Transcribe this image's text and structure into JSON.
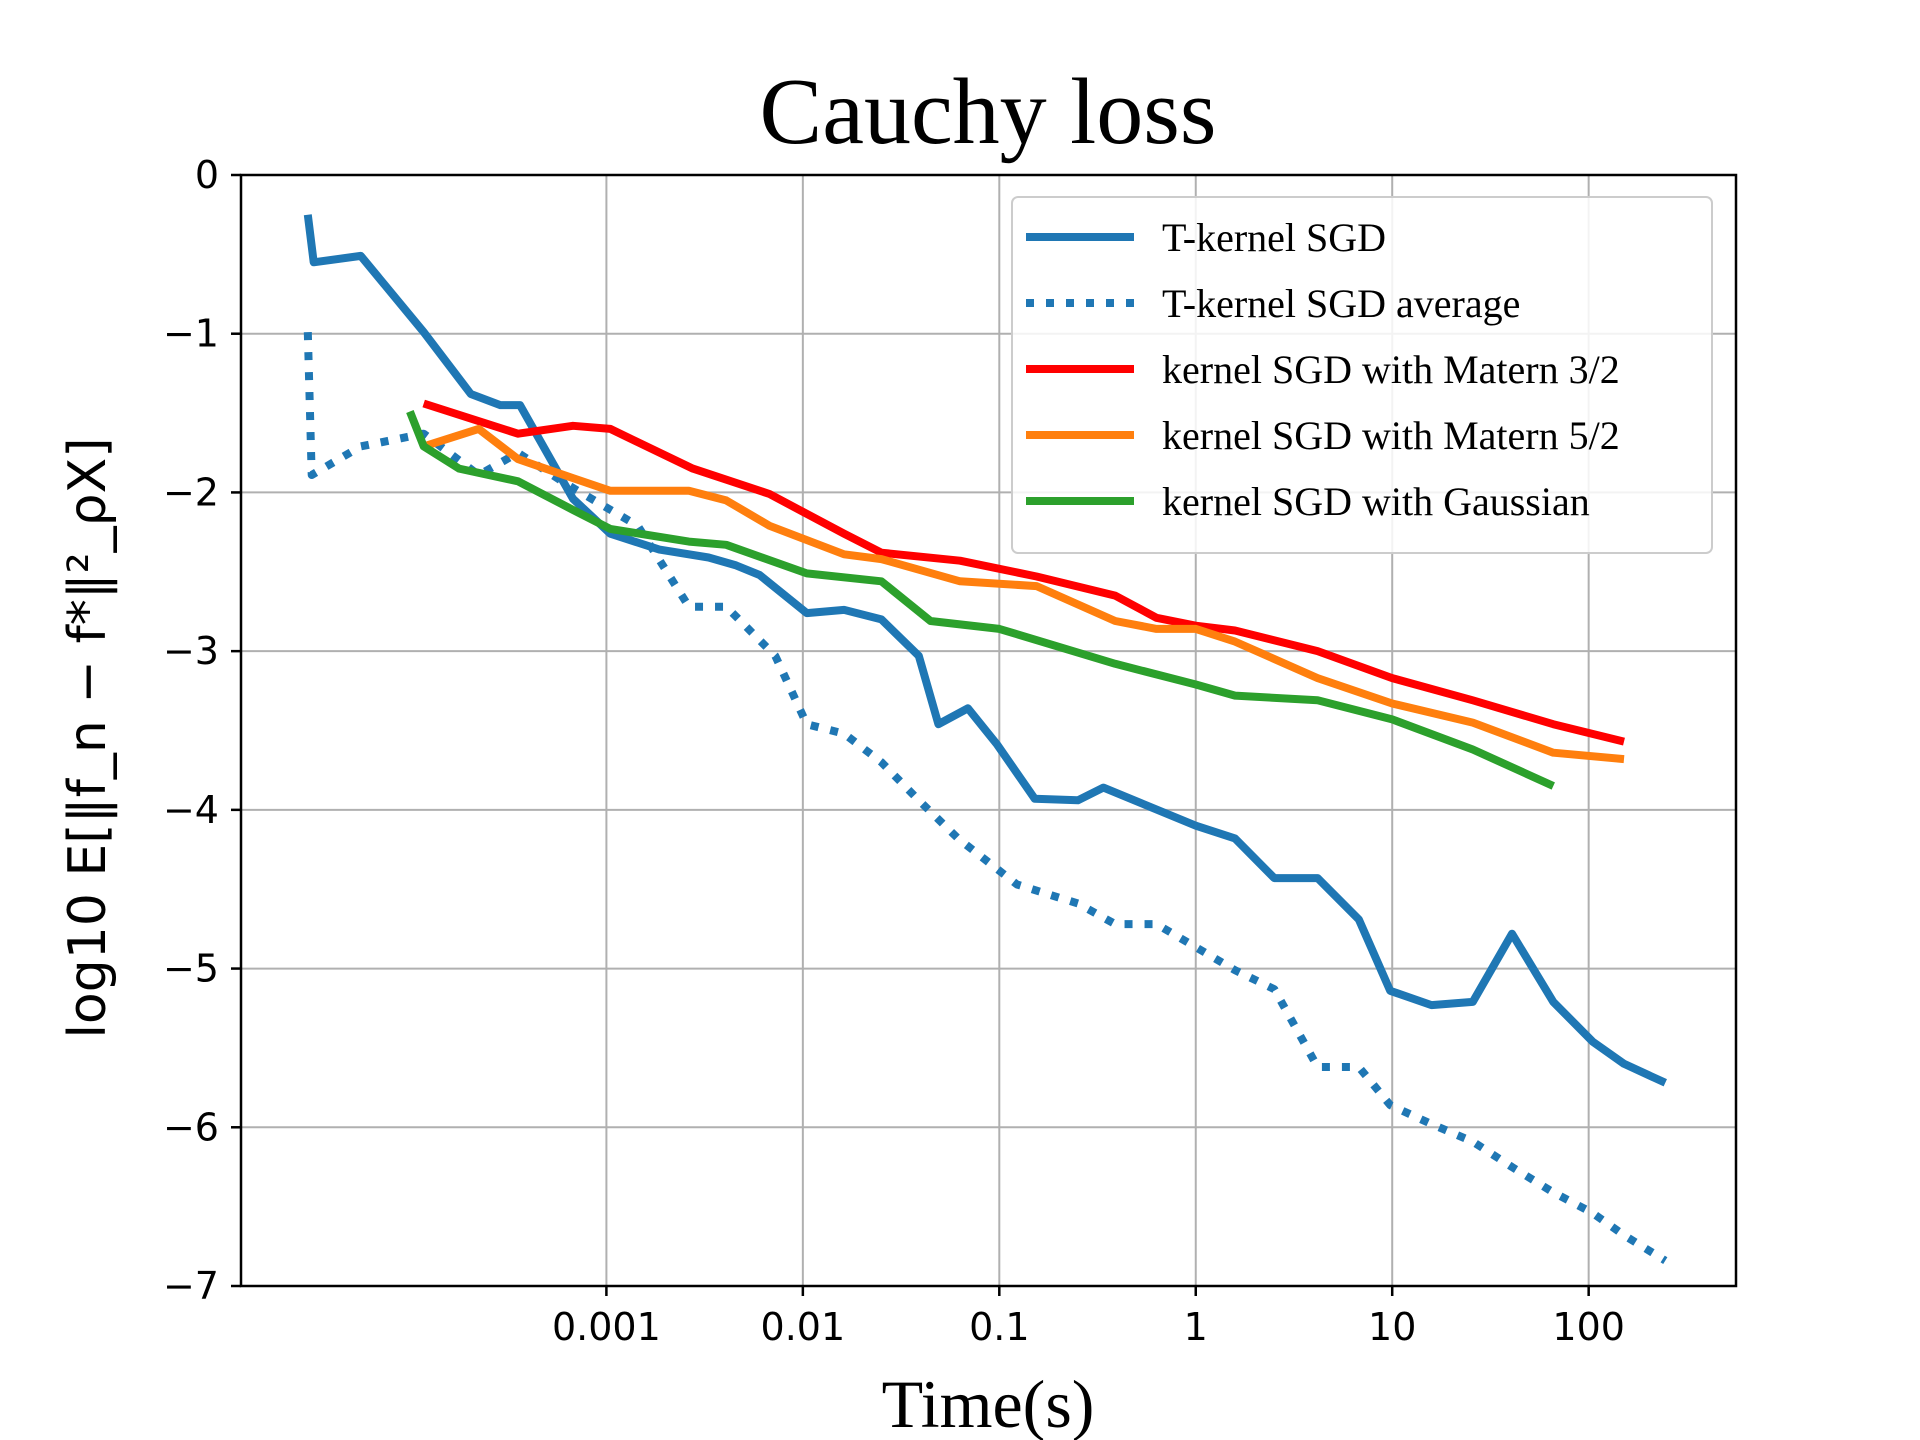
{
  "chart_data": {
    "type": "line",
    "title": "Cauchy loss",
    "xlabel": "Time(s)",
    "ylabel": "log10 E[‖f_n − f*‖²_ρX]",
    "x_scale": "log10",
    "xlim_log10": [
      -4.86,
      2.75
    ],
    "ylim": [
      -7,
      0
    ],
    "grid": true,
    "legend_position": "top-right",
    "x_ticks": [
      {
        "log10": -3,
        "label": "0.001"
      },
      {
        "log10": -2,
        "label": "0.01"
      },
      {
        "log10": -1,
        "label": "0.1"
      },
      {
        "log10": 0,
        "label": "1"
      },
      {
        "log10": 1,
        "label": "10"
      },
      {
        "log10": 2,
        "label": "100"
      }
    ],
    "y_ticks": [
      {
        "value": 0,
        "label": "0"
      },
      {
        "value": -1,
        "label": "−1"
      },
      {
        "value": -2,
        "label": "−2"
      },
      {
        "value": -3,
        "label": "−3"
      },
      {
        "value": -4,
        "label": "−4"
      },
      {
        "value": -5,
        "label": "−5"
      },
      {
        "value": -6,
        "label": "−6"
      },
      {
        "value": -7,
        "label": "−7"
      }
    ],
    "series": [
      {
        "name": "T-kernel SGD",
        "color": "#1f77b4",
        "style": "solid",
        "x_log10": [
          -4.52,
          -4.49,
          -4.25,
          -3.93,
          -3.69,
          -3.54,
          -3.44,
          -3.17,
          -2.98,
          -2.73,
          -2.48,
          -2.34,
          -2.22,
          -1.98,
          -1.79,
          -1.6,
          -1.41,
          -1.31,
          -1.16,
          -1.01,
          -0.82,
          -0.6,
          -0.47,
          0.0,
          0.2,
          0.4,
          0.62,
          0.83,
          0.99,
          1.2,
          1.41,
          1.61,
          1.82,
          2.02,
          2.18,
          2.39
        ],
        "y": [
          -0.25,
          -0.55,
          -0.51,
          -0.99,
          -1.38,
          -1.45,
          -1.45,
          -2.04,
          -2.26,
          -2.36,
          -2.41,
          -2.46,
          -2.52,
          -2.76,
          -2.74,
          -2.8,
          -3.03,
          -3.46,
          -3.36,
          -3.59,
          -3.93,
          -3.94,
          -3.86,
          -4.1,
          -4.18,
          -4.43,
          -4.43,
          -4.69,
          -5.14,
          -5.23,
          -5.21,
          -4.78,
          -5.21,
          -5.46,
          -5.6,
          -5.72
        ]
      },
      {
        "name": "T-kernel SGD average",
        "color": "#1f77b4",
        "style": "dotted",
        "x_log10": [
          -4.52,
          -4.5,
          -4.25,
          -3.93,
          -3.65,
          -3.45,
          -3.2,
          -2.84,
          -2.58,
          -2.39,
          -2.14,
          -1.98,
          -1.79,
          -1.6,
          -1.41,
          -1.21,
          -0.91,
          -0.6,
          -0.41,
          -0.2,
          0.2,
          0.4,
          0.62,
          0.83,
          0.99,
          1.2,
          1.41,
          1.61,
          1.82,
          2.02,
          2.18,
          2.39
        ],
        "y": [
          -0.99,
          -1.89,
          -1.71,
          -1.63,
          -1.89,
          -1.75,
          -1.95,
          -2.21,
          -2.72,
          -2.72,
          -3.03,
          -3.46,
          -3.52,
          -3.7,
          -3.94,
          -4.18,
          -4.47,
          -4.59,
          -4.72,
          -4.72,
          -5.01,
          -5.13,
          -5.62,
          -5.62,
          -5.86,
          -5.98,
          -6.09,
          -6.25,
          -6.41,
          -6.54,
          -6.68,
          -6.84
        ]
      },
      {
        "name": "kernel SGD with Matern 3/2",
        "color": "#ff0000",
        "style": "solid",
        "x_log10": [
          -3.93,
          -3.45,
          -3.17,
          -2.98,
          -2.56,
          -2.17,
          -1.79,
          -1.6,
          -1.2,
          -0.81,
          -0.41,
          -0.2,
          0.0,
          0.2,
          0.62,
          1.0,
          1.41,
          1.82,
          2.18
        ],
        "y": [
          -1.44,
          -1.63,
          -1.58,
          -1.6,
          -1.85,
          -2.01,
          -2.26,
          -2.38,
          -2.43,
          -2.53,
          -2.65,
          -2.79,
          -2.84,
          -2.87,
          -3.0,
          -3.17,
          -3.31,
          -3.46,
          -3.57
        ]
      },
      {
        "name": "kernel SGD with Matern 5/2",
        "color": "#ff7f0e",
        "style": "solid",
        "x_log10": [
          -3.93,
          -3.65,
          -3.45,
          -3.17,
          -2.98,
          -2.58,
          -2.39,
          -2.17,
          -1.79,
          -1.6,
          -1.2,
          -0.81,
          -0.41,
          -0.2,
          0.0,
          0.2,
          0.62,
          1.0,
          1.41,
          1.82,
          2.18
        ],
        "y": [
          -1.71,
          -1.6,
          -1.79,
          -1.91,
          -1.99,
          -1.99,
          -2.05,
          -2.21,
          -2.39,
          -2.42,
          -2.56,
          -2.59,
          -2.81,
          -2.86,
          -2.86,
          -2.94,
          -3.17,
          -3.33,
          -3.45,
          -3.64,
          -3.68
        ]
      },
      {
        "name": "kernel SGD with Gaussian",
        "color": "#2ca02c",
        "style": "solid",
        "x_log10": [
          -4.0,
          -3.93,
          -3.75,
          -3.45,
          -3.17,
          -2.98,
          -2.58,
          -2.39,
          -1.98,
          -1.6,
          -1.35,
          -1.0,
          -0.41,
          0.0,
          0.2,
          0.62,
          1.0,
          1.41,
          1.82
        ],
        "y": [
          -1.49,
          -1.71,
          -1.85,
          -1.93,
          -2.11,
          -2.23,
          -2.31,
          -2.33,
          -2.51,
          -2.56,
          -2.81,
          -2.86,
          -3.08,
          -3.21,
          -3.28,
          -3.31,
          -3.43,
          -3.62,
          -3.85
        ]
      }
    ]
  }
}
